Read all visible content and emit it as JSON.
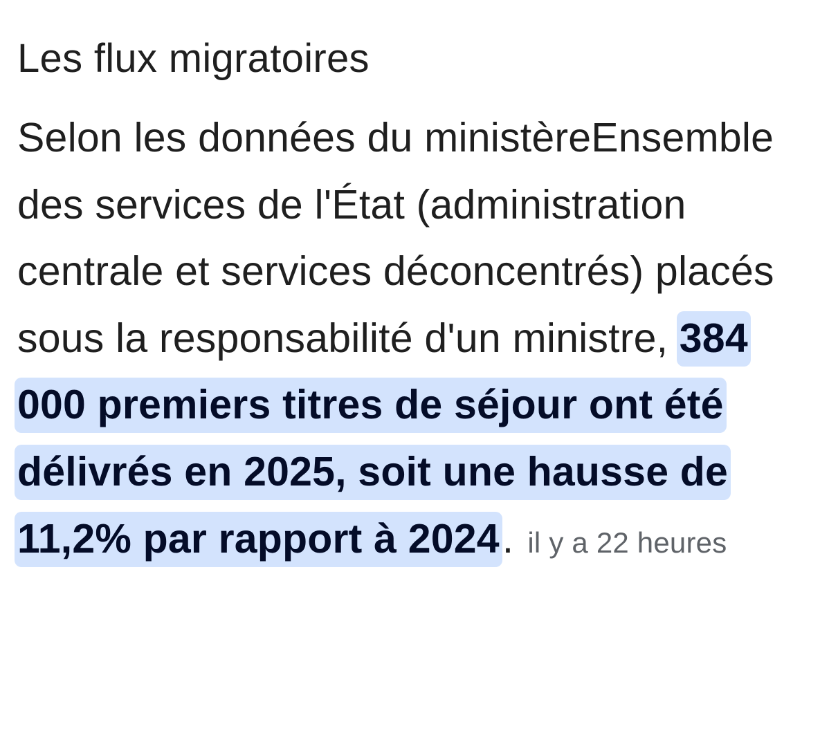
{
  "snippet": {
    "heading": "Les flux migratoires",
    "lead_text": "Selon les données du ministèreEnsemble des services de l'État (administration centrale et services déconcentrés) placés sous la responsabilité d'un ministre, ",
    "highlighted_text": "384 000 premiers titres de séjour ont été délivrés en 2025, soit une hausse de 11,2% par rapport à 2024",
    "trailing_punctuation": ".",
    "timestamp": "il y a 22 heures",
    "highlight_color": "#d3e3fd",
    "highlight_text_color": "#040c28"
  }
}
